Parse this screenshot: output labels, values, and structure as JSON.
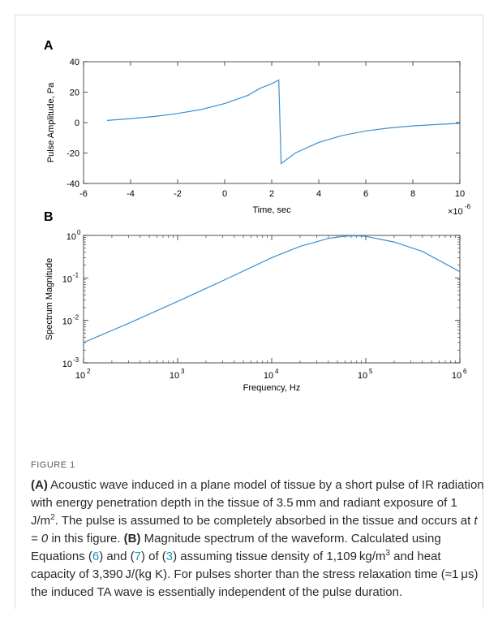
{
  "chart_data": [
    {
      "panel": "A",
      "type": "line",
      "xlabel": "Time, sec",
      "ylabel": "Pulse Amplitude, Pa",
      "xlim": [
        -6,
        10
      ],
      "ylim": [
        -40,
        40
      ],
      "x_scale_exponent": "×10",
      "x_scale_power": "-6",
      "x_ticks": [
        "-6",
        "-4",
        "-2",
        "0",
        "2",
        "4",
        "6",
        "8",
        "10"
      ],
      "y_ticks": [
        "-40",
        "-20",
        "0",
        "20",
        "40"
      ],
      "line_color": "#3a8fd0",
      "series": [
        {
          "x": [
            -5,
            -4,
            -3,
            -2,
            -1,
            0,
            1,
            1.5,
            2,
            2.3,
            2.4,
            3,
            4,
            5,
            6,
            7,
            8,
            9,
            10
          ],
          "y": [
            1.4,
            2.6,
            4.0,
            6.0,
            8.6,
            12.5,
            18.0,
            22.5,
            25.5,
            28.0,
            -27.0,
            -20.0,
            -13.0,
            -8.5,
            -5.5,
            -3.5,
            -2.2,
            -1.3,
            -0.5
          ]
        }
      ]
    },
    {
      "panel": "B",
      "type": "line",
      "xlabel": "Frequency, Hz",
      "ylabel": "Spectrum Magnitude",
      "xscale": "log",
      "yscale": "log",
      "xlim": [
        100,
        1000000
      ],
      "ylim": [
        0.001,
        1
      ],
      "x_ticks": [
        {
          "base": "10",
          "exp": "2"
        },
        {
          "base": "10",
          "exp": "3"
        },
        {
          "base": "10",
          "exp": "4"
        },
        {
          "base": "10",
          "exp": "5"
        },
        {
          "base": "10",
          "exp": "6"
        }
      ],
      "y_ticks": [
        {
          "base": "10",
          "exp": "-3"
        },
        {
          "base": "10",
          "exp": "-2"
        },
        {
          "base": "10",
          "exp": "-1"
        },
        {
          "base": "10",
          "exp": "0"
        }
      ],
      "line_color": "#3a8fd0",
      "series": [
        {
          "x": [
            100,
            300,
            1000,
            3000,
            10000,
            20000,
            40000,
            60000,
            80000,
            100000,
            200000,
            400000,
            1000000
          ],
          "y": [
            0.003,
            0.0085,
            0.028,
            0.085,
            0.3,
            0.55,
            0.85,
            0.96,
            0.98,
            0.95,
            0.7,
            0.42,
            0.14
          ]
        }
      ]
    }
  ],
  "caption": {
    "label": "FIGURE 1",
    "a_label": "(A)",
    "a_text": " Acoustic wave induced in a plane model of tissue by a short pulse of IR radiation with energy penetration depth in the tissue of 3.5 mm and radiant exposure of 1 J/m",
    "a_sup": "2",
    "a_text2": ". The pulse is assumed to be completely absorbed in the tissue and occurs at ",
    "a_math": "t = 0",
    "a_text3": " in this figure. ",
    "b_label": "(B)",
    "b_text": " Magnitude spectrum of the waveform. Calculated using Equations (",
    "ref1": "6",
    "b_text2": ") and (",
    "ref2": "7",
    "b_text3": ") of (",
    "ref3": "3",
    "b_text4": ") assuming tissue density of 1,109 kg/m",
    "b_sup": "3",
    "b_text5": " and heat capacity of 3,390 J/(kg K). For pulses shorter than the stress relaxation time (≈1 μs) the induced TA wave is essentially independent of the pulse duration."
  }
}
